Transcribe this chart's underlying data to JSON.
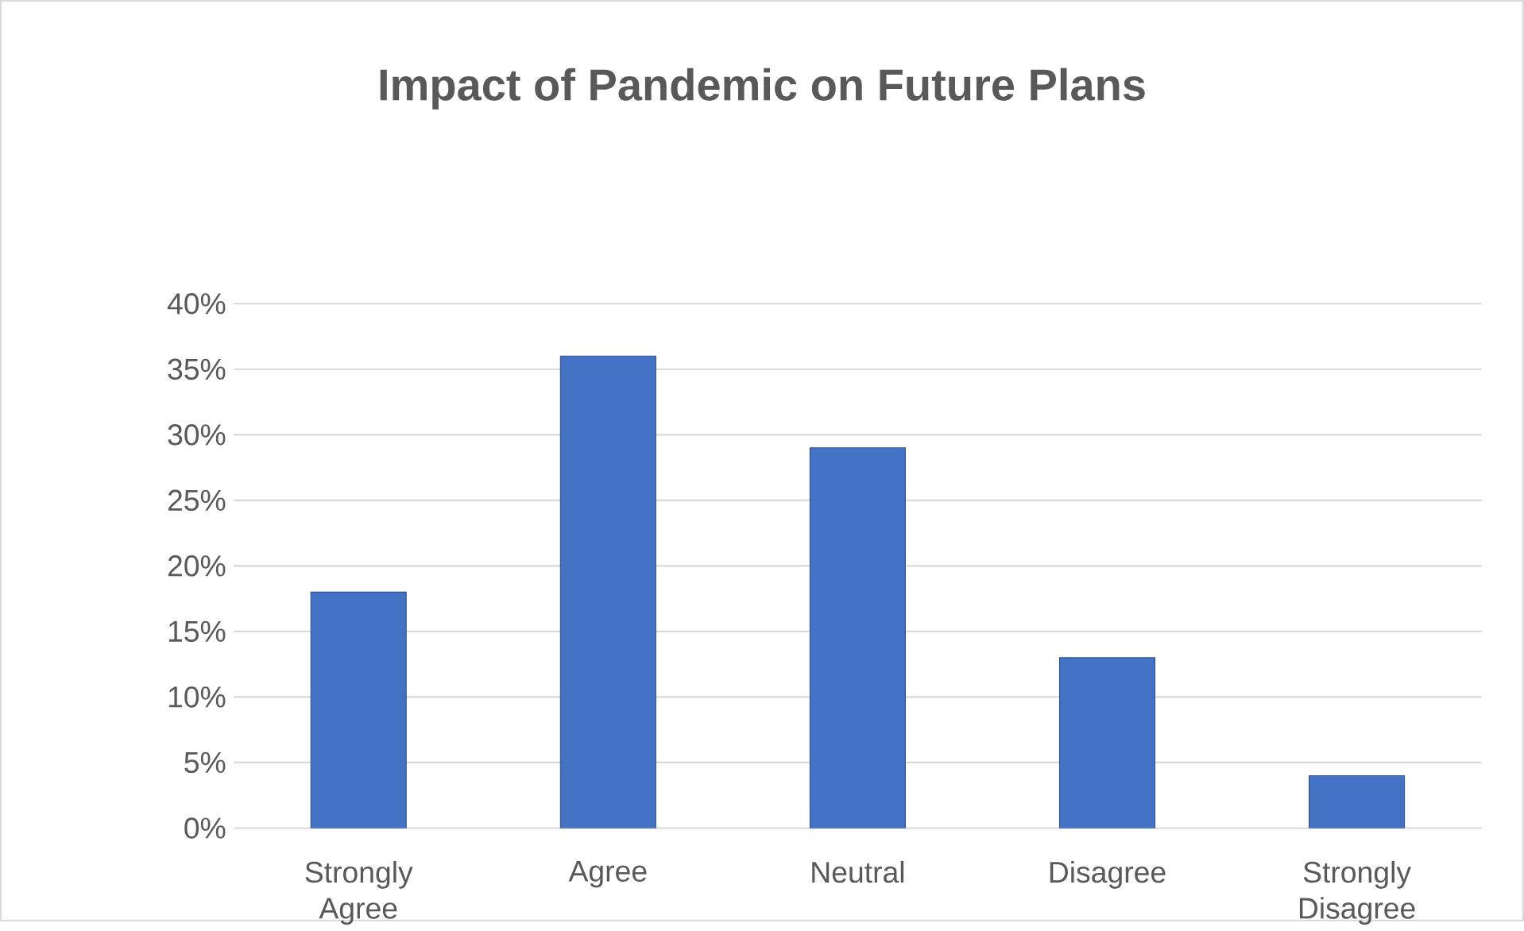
{
  "chart_data": {
    "type": "bar",
    "title": "Impact of Pandemic on Future Plans",
    "categories": [
      "Strongly Agree",
      "Agree",
      "Neutral",
      "Disagree",
      "Strongly Disagree"
    ],
    "values": [
      18,
      36,
      29,
      13,
      4
    ],
    "color": "#4472c4",
    "ylim": [
      0,
      40
    ],
    "yticks": [
      {
        "value": 0,
        "label": "0%"
      },
      {
        "value": 5,
        "label": "5%"
      },
      {
        "value": 10,
        "label": "10%"
      },
      {
        "value": 15,
        "label": "15%"
      },
      {
        "value": 20,
        "label": "20%"
      },
      {
        "value": 25,
        "label": "25%"
      },
      {
        "value": 30,
        "label": "30%"
      },
      {
        "value": 35,
        "label": "35%"
      },
      {
        "value": 40,
        "label": "40%"
      }
    ],
    "grid": "y"
  }
}
